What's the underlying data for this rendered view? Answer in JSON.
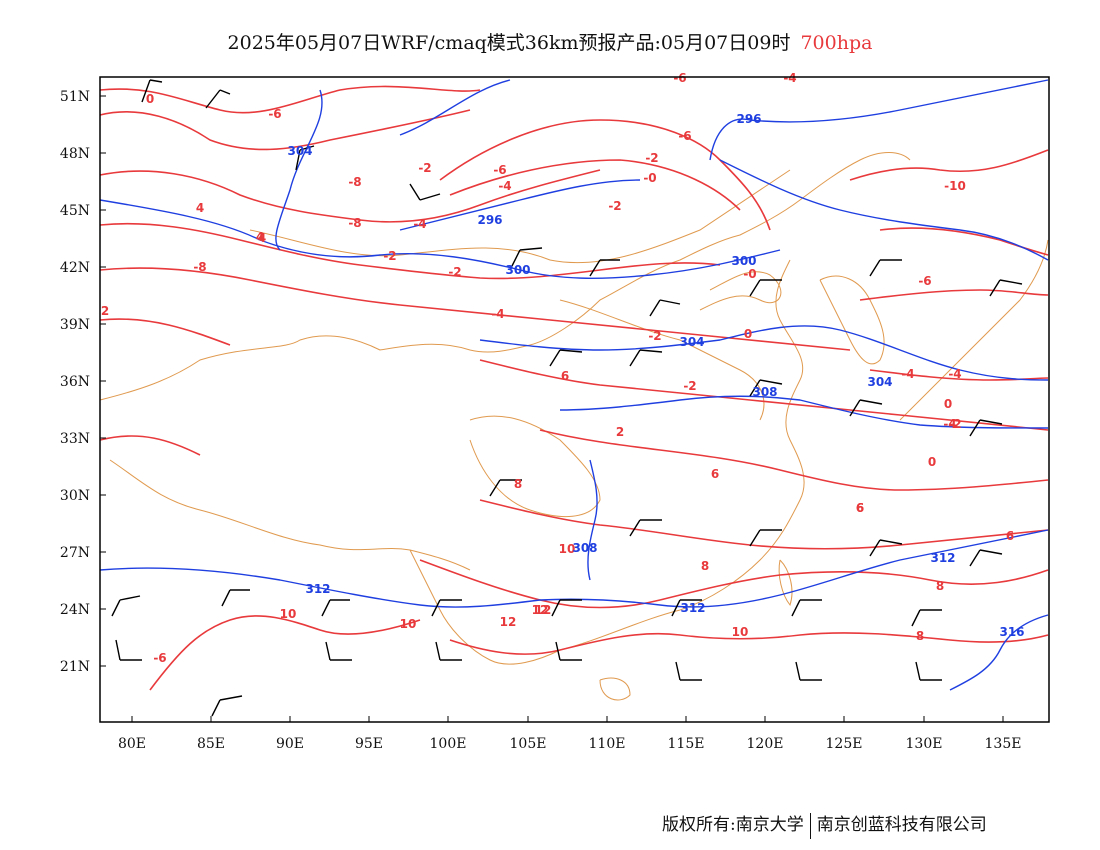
{
  "title": {
    "main": "2025年05月07日WRF/cmaq模式36km预报产品:05月07日09时",
    "level": "700hpa"
  },
  "colors": {
    "temperature": "#e8393c",
    "height": "#1f3fe0",
    "coast": "#e09a4f",
    "wind": "#000000",
    "level_text": "#e8393c"
  },
  "axes": {
    "lat_labels": [
      "51N",
      "48N",
      "45N",
      "42N",
      "39N",
      "36N",
      "33N",
      "30N",
      "27N",
      "24N",
      "21N"
    ],
    "lon_labels": [
      "80E",
      "85E",
      "90E",
      "95E",
      "100E",
      "105E",
      "110E",
      "115E",
      "120E",
      "125E",
      "130E",
      "135E"
    ]
  },
  "temperature_labels": [
    "0",
    "-6",
    "-8",
    "-6",
    "-4",
    "-2",
    "-0",
    "-2",
    "-6",
    "-4",
    "-6",
    "-8",
    "-10",
    "-6",
    "-8",
    "4",
    "-2",
    "-4",
    "-2",
    "-0",
    "0",
    "4",
    "-2",
    "2",
    "6",
    "-2",
    "-2",
    "-4",
    "0",
    "4",
    "-4",
    "2",
    "-4",
    "-4",
    "0",
    "-2",
    "6",
    "8",
    "6",
    "12",
    "10",
    "12",
    "10",
    "8",
    "10",
    "6",
    "8",
    "8",
    "10",
    "-6",
    "6",
    "12"
  ],
  "height_labels": [
    "304",
    "296",
    "296",
    "300",
    "300",
    "304",
    "308",
    "304",
    "308",
    "312",
    "312",
    "312",
    "316"
  ],
  "footer": {
    "left": "版权所有:南京大学",
    "right": "南京创蓝科技有限公司"
  }
}
